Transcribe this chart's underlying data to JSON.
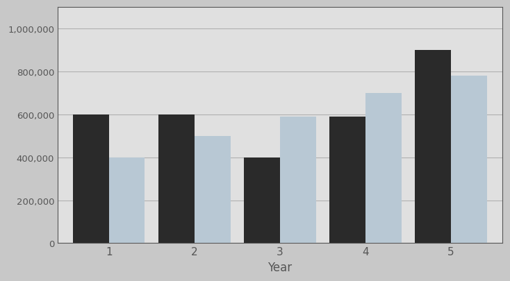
{
  "years": [
    1,
    2,
    3,
    4,
    5
  ],
  "income": [
    600000,
    600000,
    400000,
    590000,
    900000
  ],
  "expenses": [
    400000,
    500000,
    590000,
    700000,
    780000
  ],
  "income_color": "#2a2a2a",
  "expenses_color": "#b8c8d4",
  "xlabel": "Year",
  "ylim": [
    0,
    1100000
  ],
  "yticks": [
    0,
    200000,
    400000,
    600000,
    800000,
    1000000
  ],
  "ytick_labels": [
    "0",
    "200,000",
    "400,000",
    "600,000",
    "800,000",
    "1,000,000"
  ],
  "outer_background": "#c8c8c8",
  "plot_background_color": "#e0e0e0",
  "grid_color": "#b0b0b0",
  "bar_width": 0.42,
  "border_color": "#555555"
}
